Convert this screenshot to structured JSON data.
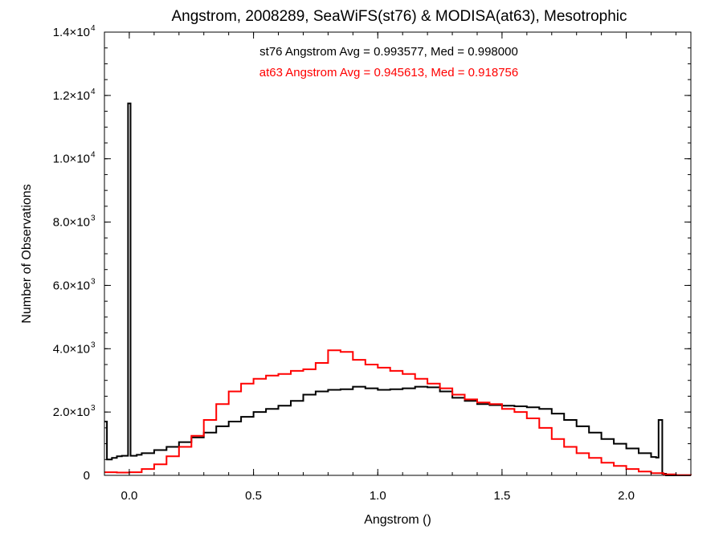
{
  "chart_data": {
    "type": "histogram-step",
    "title": "Angstrom, 2008289, SeaWiFS(st76) & MODISA(at63), Mesotrophic",
    "xlabel": "Angstrom ()",
    "ylabel": "Number of Observations",
    "xlim": [
      -0.1,
      2.26
    ],
    "ylim": [
      0,
      14000
    ],
    "x_ticks": [
      {
        "value": 0.0,
        "label": "0.0"
      },
      {
        "value": 0.5,
        "label": "0.5"
      },
      {
        "value": 1.0,
        "label": "1.0"
      },
      {
        "value": 1.5,
        "label": "1.5"
      },
      {
        "value": 2.0,
        "label": "2.0"
      }
    ],
    "y_ticks": [
      {
        "value": 0,
        "mant": "0",
        "exp": ""
      },
      {
        "value": 2000,
        "mant": "2.0×10",
        "exp": "3"
      },
      {
        "value": 4000,
        "mant": "4.0×10",
        "exp": "3"
      },
      {
        "value": 6000,
        "mant": "6.0×10",
        "exp": "3"
      },
      {
        "value": 8000,
        "mant": "8.0×10",
        "exp": "3"
      },
      {
        "value": 10000,
        "mant": "1.0×10",
        "exp": "4"
      },
      {
        "value": 12000,
        "mant": "1.2×10",
        "exp": "4"
      },
      {
        "value": 14000,
        "mant": "1.4×10",
        "exp": "4"
      }
    ],
    "annotations": [
      {
        "text": "st76 Angstrom Avg = 0.993577, Med = 0.998000",
        "color": "#000000"
      },
      {
        "text": "at63 Angstrom Avg = 0.945613, Med = 0.918756",
        "color": "#ff0000"
      }
    ],
    "series": [
      {
        "color": "#000000",
        "points": [
          [
            -0.1,
            1700
          ],
          [
            -0.09,
            500
          ],
          [
            -0.07,
            550
          ],
          [
            -0.05,
            600
          ],
          [
            -0.03,
            620
          ],
          [
            -0.01,
            620
          ],
          [
            -0.005,
            11750
          ],
          [
            0.005,
            620
          ],
          [
            0.03,
            650
          ],
          [
            0.05,
            700
          ],
          [
            0.1,
            800
          ],
          [
            0.15,
            900
          ],
          [
            0.2,
            1050
          ],
          [
            0.25,
            1200
          ],
          [
            0.3,
            1350
          ],
          [
            0.35,
            1550
          ],
          [
            0.4,
            1700
          ],
          [
            0.45,
            1850
          ],
          [
            0.5,
            2000
          ],
          [
            0.55,
            2100
          ],
          [
            0.6,
            2200
          ],
          [
            0.65,
            2350
          ],
          [
            0.7,
            2550
          ],
          [
            0.75,
            2650
          ],
          [
            0.8,
            2700
          ],
          [
            0.85,
            2720
          ],
          [
            0.9,
            2800
          ],
          [
            0.95,
            2750
          ],
          [
            1.0,
            2700
          ],
          [
            1.05,
            2720
          ],
          [
            1.1,
            2750
          ],
          [
            1.15,
            2800
          ],
          [
            1.2,
            2780
          ],
          [
            1.25,
            2650
          ],
          [
            1.3,
            2450
          ],
          [
            1.35,
            2350
          ],
          [
            1.4,
            2250
          ],
          [
            1.45,
            2220
          ],
          [
            1.5,
            2200
          ],
          [
            1.55,
            2180
          ],
          [
            1.6,
            2150
          ],
          [
            1.65,
            2100
          ],
          [
            1.7,
            1950
          ],
          [
            1.75,
            1750
          ],
          [
            1.8,
            1550
          ],
          [
            1.85,
            1350
          ],
          [
            1.9,
            1150
          ],
          [
            1.95,
            1000
          ],
          [
            2.0,
            850
          ],
          [
            2.05,
            700
          ],
          [
            2.1,
            580
          ],
          [
            2.12,
            560
          ],
          [
            2.13,
            1750
          ],
          [
            2.145,
            50
          ],
          [
            2.16,
            0
          ]
        ]
      },
      {
        "color": "#ff0000",
        "points": [
          [
            -0.1,
            100
          ],
          [
            -0.05,
            90
          ],
          [
            0.0,
            100
          ],
          [
            0.05,
            200
          ],
          [
            0.1,
            350
          ],
          [
            0.15,
            600
          ],
          [
            0.2,
            900
          ],
          [
            0.25,
            1250
          ],
          [
            0.3,
            1750
          ],
          [
            0.35,
            2250
          ],
          [
            0.4,
            2650
          ],
          [
            0.45,
            2900
          ],
          [
            0.5,
            3050
          ],
          [
            0.55,
            3150
          ],
          [
            0.6,
            3200
          ],
          [
            0.65,
            3300
          ],
          [
            0.7,
            3350
          ],
          [
            0.75,
            3550
          ],
          [
            0.8,
            3950
          ],
          [
            0.85,
            3900
          ],
          [
            0.9,
            3650
          ],
          [
            0.95,
            3500
          ],
          [
            1.0,
            3400
          ],
          [
            1.05,
            3300
          ],
          [
            1.1,
            3200
          ],
          [
            1.15,
            3050
          ],
          [
            1.2,
            2900
          ],
          [
            1.25,
            2750
          ],
          [
            1.3,
            2550
          ],
          [
            1.35,
            2400
          ],
          [
            1.4,
            2300
          ],
          [
            1.45,
            2250
          ],
          [
            1.5,
            2100
          ],
          [
            1.55,
            2000
          ],
          [
            1.6,
            1800
          ],
          [
            1.65,
            1500
          ],
          [
            1.7,
            1150
          ],
          [
            1.75,
            900
          ],
          [
            1.8,
            700
          ],
          [
            1.85,
            550
          ],
          [
            1.9,
            400
          ],
          [
            1.95,
            300
          ],
          [
            2.0,
            200
          ],
          [
            2.05,
            120
          ],
          [
            2.1,
            70
          ],
          [
            2.15,
            30
          ],
          [
            2.2,
            10
          ],
          [
            2.26,
            5
          ]
        ]
      }
    ]
  }
}
